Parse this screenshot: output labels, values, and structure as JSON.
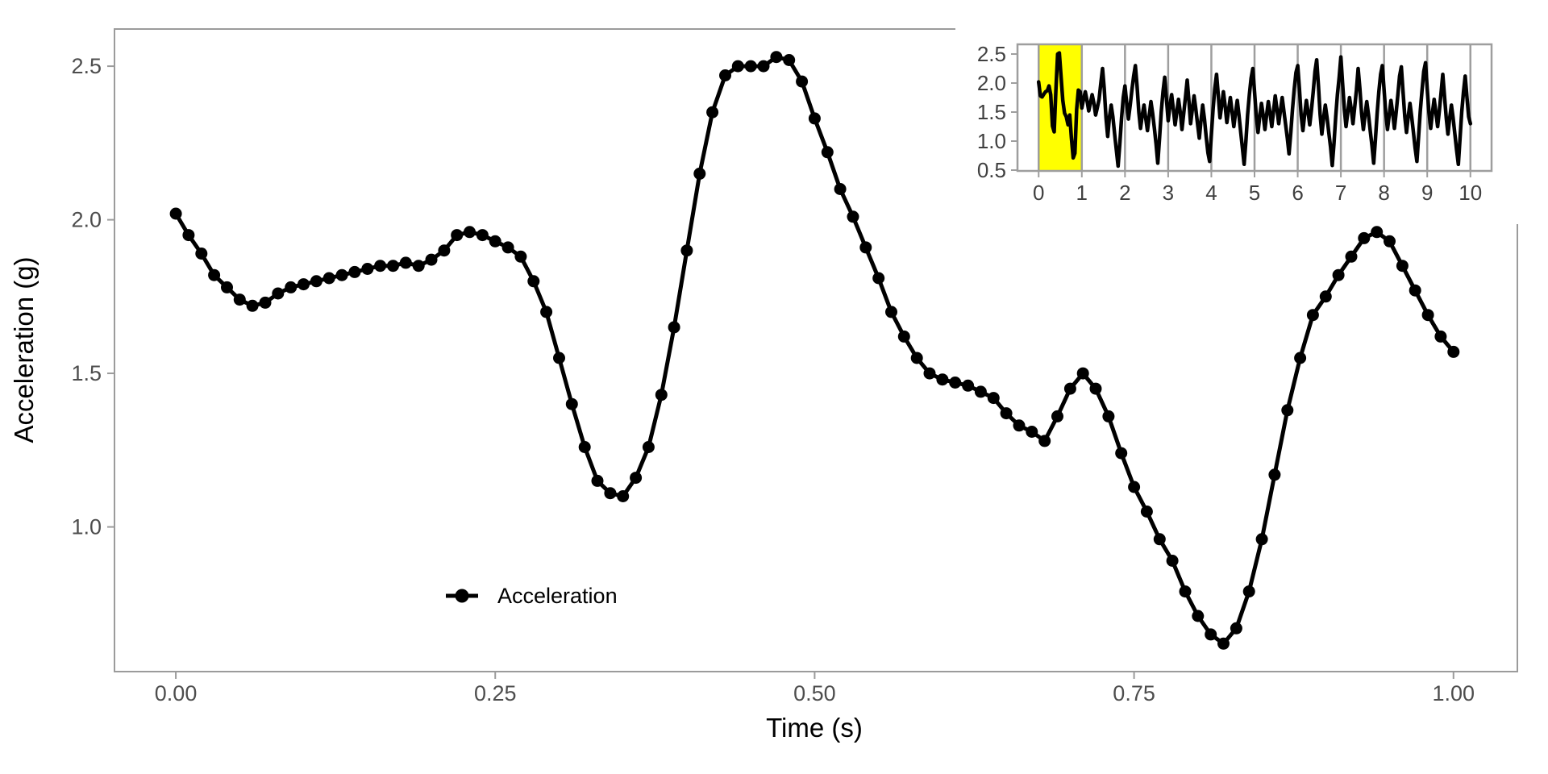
{
  "figure": {
    "background": "#ffffff"
  },
  "style": {
    "series_color": "#000000",
    "tick_label_color": "#4d4d4d",
    "inset_tick_label_color": "#404040",
    "axis_line_color": "#9b9b9b",
    "grid_line_color": "#9e9e9e",
    "highlight_color": "#ffff00"
  },
  "chart_data": [
    {
      "id": "main",
      "type": "line",
      "title": "",
      "xlabel": "Time (s)",
      "ylabel": "Acceleration (g)",
      "x_tick_labels": [
        "0.00",
        "0.25",
        "0.50",
        "0.75",
        "1.00"
      ],
      "x_tick_values": [
        0,
        0.25,
        0.5,
        0.75,
        1
      ],
      "y_tick_labels": [
        "1.0",
        "1.5",
        "2.0",
        "2.5"
      ],
      "y_tick_values": [
        1,
        1.5,
        2,
        2.5
      ],
      "xlim": [
        -0.048,
        1.05
      ],
      "ylim": [
        0.529,
        2.621
      ],
      "grid": false,
      "legend": {
        "position": "inside-bottom-left",
        "entries": [
          "Acceleration"
        ]
      },
      "series": [
        {
          "name": "Acceleration",
          "color": "#000000",
          "marker": "point",
          "x_start": 0,
          "x_step": 0.01,
          "values": [
            2.02,
            1.95,
            1.89,
            1.82,
            1.78,
            1.74,
            1.72,
            1.73,
            1.76,
            1.78,
            1.79,
            1.8,
            1.81,
            1.82,
            1.83,
            1.84,
            1.85,
            1.85,
            1.86,
            1.85,
            1.87,
            1.9,
            1.95,
            1.96,
            1.95,
            1.93,
            1.91,
            1.88,
            1.8,
            1.7,
            1.55,
            1.4,
            1.26,
            1.15,
            1.11,
            1.1,
            1.16,
            1.26,
            1.43,
            1.65,
            1.9,
            2.15,
            2.35,
            2.47,
            2.5,
            2.5,
            2.5,
            2.53,
            2.52,
            2.45,
            2.33,
            2.22,
            2.1,
            2.01,
            1.91,
            1.81,
            1.7,
            1.62,
            1.55,
            1.5,
            1.48,
            1.47,
            1.46,
            1.44,
            1.42,
            1.37,
            1.33,
            1.31,
            1.28,
            1.36,
            1.45,
            1.5,
            1.45,
            1.36,
            1.24,
            1.13,
            1.05,
            0.96,
            0.89,
            0.79,
            0.71,
            0.65,
            0.62,
            0.67,
            0.79,
            0.96,
            1.17,
            1.38,
            1.55,
            1.69,
            1.75,
            1.82,
            1.88,
            1.94,
            1.96,
            1.93,
            1.85,
            1.77,
            1.69,
            1.62,
            1.57
          ]
        }
      ]
    },
    {
      "id": "overview_inset",
      "type": "line",
      "title": "",
      "xlabel": "",
      "ylabel": "",
      "x_tick_labels": [
        "0",
        "1",
        "2",
        "3",
        "4",
        "5",
        "6",
        "7",
        "8",
        "9",
        "10"
      ],
      "x_tick_values": [
        0,
        1,
        2,
        3,
        4,
        5,
        6,
        7,
        8,
        9,
        10
      ],
      "y_tick_labels": [
        "0.5",
        "1.0",
        "1.5",
        "2.0",
        "2.5"
      ],
      "y_tick_values": [
        0.5,
        1,
        1.5,
        2,
        2.5
      ],
      "xlim": [
        -0.49,
        10.49
      ],
      "ylim": [
        0.486,
        2.667
      ],
      "grid": "vertical",
      "highlight": {
        "x0": 0,
        "x1": 1,
        "color": "#ffff00"
      },
      "series": [
        {
          "name": "Acceleration",
          "color": "#000000",
          "marker": "none",
          "x_start": 0,
          "x_step": 0.04,
          "values": [
            2.02,
            1.78,
            1.76,
            1.81,
            1.85,
            1.87,
            1.95,
            1.8,
            1.26,
            1.16,
            1.9,
            2.5,
            2.52,
            2.1,
            1.7,
            1.48,
            1.42,
            1.28,
            1.45,
            1.05,
            0.71,
            0.79,
            1.55,
            1.88,
            1.85,
            1.57,
            1.72,
            1.85,
            1.7,
            1.52,
            1.66,
            1.8,
            1.65,
            1.45,
            1.58,
            1.72,
            2.0,
            2.25,
            1.9,
            1.4,
            1.08,
            1.42,
            1.62,
            1.42,
            1.12,
            0.85,
            0.57,
            0.95,
            1.4,
            1.75,
            1.95,
            1.65,
            1.38,
            1.62,
            1.88,
            2.12,
            2.3,
            1.95,
            1.5,
            1.22,
            1.45,
            1.62,
            1.4,
            1.18,
            1.42,
            1.68,
            1.48,
            1.22,
            0.95,
            0.62,
            1.05,
            1.5,
            1.85,
            2.1,
            1.72,
            1.35,
            1.6,
            1.8,
            1.55,
            1.28,
            1.5,
            1.72,
            1.5,
            1.2,
            1.48,
            1.75,
            2.05,
            1.7,
            1.3,
            1.55,
            1.78,
            1.55,
            1.3,
            1.05,
            1.35,
            1.62,
            1.38,
            1.08,
            0.8,
            0.65,
            1.1,
            1.55,
            1.9,
            2.15,
            1.8,
            1.4,
            1.62,
            1.85,
            1.6,
            1.32,
            1.55,
            1.75,
            1.5,
            1.25,
            1.48,
            1.7,
            1.45,
            1.15,
            0.88,
            0.6,
            1.0,
            1.45,
            1.8,
            2.08,
            2.25,
            1.85,
            1.45,
            1.15,
            1.42,
            1.65,
            1.45,
            1.2,
            1.45,
            1.68,
            1.48,
            1.25,
            1.52,
            1.78,
            1.55,
            1.3,
            1.52,
            1.75,
            1.52,
            1.28,
            1.05,
            0.78,
            1.15,
            1.55,
            1.9,
            2.18,
            2.3,
            1.9,
            1.45,
            1.18,
            1.45,
            1.7,
            1.5,
            1.28,
            1.55,
            1.85,
            2.2,
            2.4,
            1.95,
            1.45,
            1.12,
            1.4,
            1.62,
            1.4,
            1.15,
            0.9,
            0.58,
            0.95,
            1.42,
            1.8,
            2.1,
            2.45,
            2.0,
            1.55,
            1.25,
            1.5,
            1.75,
            1.55,
            1.3,
            1.58,
            1.88,
            2.25,
            1.9,
            1.48,
            1.2,
            1.45,
            1.68,
            1.45,
            1.18,
            0.92,
            0.62,
            1.02,
            1.48,
            1.85,
            2.15,
            2.3,
            1.88,
            1.48,
            1.2,
            1.45,
            1.7,
            1.48,
            1.22,
            1.5,
            1.8,
            2.12,
            2.28,
            1.85,
            1.42,
            1.15,
            1.42,
            1.65,
            1.42,
            1.15,
            0.88,
            0.65,
            1.08,
            1.52,
            1.88,
            2.2,
            2.35,
            1.9,
            1.5,
            1.22,
            1.48,
            1.72,
            1.5,
            1.25,
            1.52,
            1.82,
            2.15,
            1.78,
            1.4,
            1.12,
            1.4,
            1.62,
            1.4,
            1.12,
            0.85,
            0.6,
            1.05,
            1.5,
            1.85,
            2.12,
            1.75,
            1.42,
            1.3
          ]
        }
      ]
    }
  ]
}
